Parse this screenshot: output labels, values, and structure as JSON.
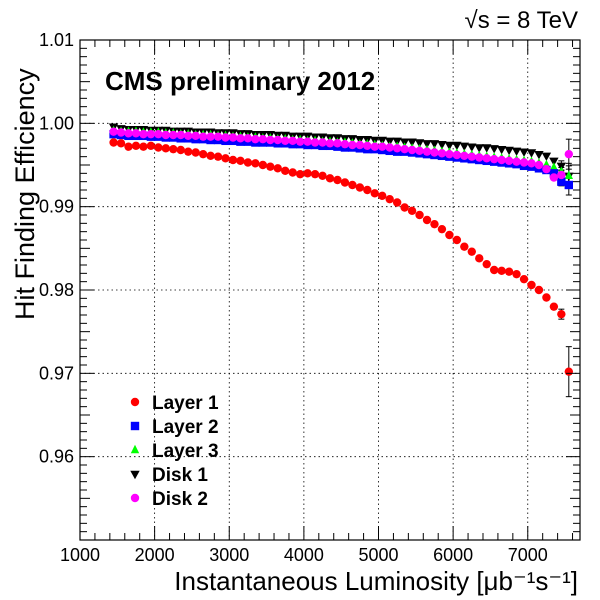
{
  "chart_data": {
    "type": "scatter",
    "energy_label": "√s = 8 TeV",
    "annotation": "CMS preliminary 2012",
    "xlabel": "Instantaneous Luminosity [μb⁻¹s⁻¹]",
    "ylabel": "Hit Finding Efficiency",
    "xlim": [
      1000,
      7700
    ],
    "ylim": [
      0.95,
      1.01
    ],
    "xticks": [
      {
        "value": 1000,
        "label": "1000"
      },
      {
        "value": 2000,
        "label": "2000"
      },
      {
        "value": 3000,
        "label": "3000"
      },
      {
        "value": 4000,
        "label": "4000"
      },
      {
        "value": 5000,
        "label": "5000"
      },
      {
        "value": 6000,
        "label": "6000"
      },
      {
        "value": 7000,
        "label": "7000"
      }
    ],
    "yticks": [
      {
        "value": 0.96,
        "label": "0.96"
      },
      {
        "value": 0.97,
        "label": "0.97"
      },
      {
        "value": 0.98,
        "label": "0.98"
      },
      {
        "value": 0.99,
        "label": "0.99"
      },
      {
        "value": 1.0,
        "label": "1.00"
      },
      {
        "value": 1.01,
        "label": "1.01"
      }
    ],
    "grid": true,
    "legend_position": "bottom-left",
    "series": [
      {
        "name": "Layer 1",
        "marker": "circle",
        "color": "#ff0000",
        "x": [
          1450,
          1550,
          1650,
          1750,
          1850,
          1950,
          2050,
          2150,
          2250,
          2350,
          2450,
          2550,
          2650,
          2750,
          2850,
          2950,
          3050,
          3150,
          3250,
          3350,
          3450,
          3550,
          3650,
          3750,
          3850,
          3950,
          4050,
          4150,
          4250,
          4350,
          4450,
          4550,
          4650,
          4750,
          4850,
          4950,
          5050,
          5150,
          5250,
          5350,
          5450,
          5550,
          5650,
          5750,
          5850,
          5950,
          6050,
          6150,
          6250,
          6350,
          6450,
          6550,
          6650,
          6750,
          6850,
          6950,
          7050,
          7150,
          7250,
          7350,
          7450,
          7550
        ],
        "y": [
          0.9977,
          0.9976,
          0.9972,
          0.9973,
          0.9972,
          0.9973,
          0.9971,
          0.997,
          0.9969,
          0.9968,
          0.9966,
          0.9965,
          0.9963,
          0.9961,
          0.996,
          0.9958,
          0.9956,
          0.9955,
          0.9953,
          0.9952,
          0.995,
          0.9948,
          0.9946,
          0.9943,
          0.9941,
          0.9939,
          0.994,
          0.9939,
          0.9937,
          0.9934,
          0.9932,
          0.9929,
          0.9926,
          0.9923,
          0.992,
          0.9916,
          0.9913,
          0.9909,
          0.9905,
          0.9899,
          0.9895,
          0.989,
          0.9884,
          0.9879,
          0.9873,
          0.9866,
          0.986,
          0.9852,
          0.9846,
          0.9838,
          0.9831,
          0.9824,
          0.9823,
          0.9822,
          0.9819,
          0.9813,
          0.9806,
          0.98,
          0.9791,
          0.978,
          0.9771,
          0.9702
        ],
        "yerr": [
          0.0002,
          0.0002,
          0.0002,
          0.0002,
          0.0002,
          0.0002,
          0.0002,
          0.0002,
          0.0002,
          0.0002,
          0.0002,
          0.0002,
          0.0002,
          0.0002,
          0.0002,
          0.0002,
          0.0002,
          0.0002,
          0.0002,
          0.0002,
          0.0002,
          0.0002,
          0.0002,
          0.0002,
          0.0002,
          0.0002,
          0.0002,
          0.0002,
          0.0002,
          0.0002,
          0.0002,
          0.0002,
          0.0002,
          0.0002,
          0.0002,
          0.0002,
          0.0002,
          0.0002,
          0.0002,
          0.0002,
          0.0002,
          0.0002,
          0.0002,
          0.0002,
          0.0002,
          0.0002,
          0.0002,
          0.0002,
          0.0002,
          0.0002,
          0.0002,
          0.0002,
          0.0002,
          0.0002,
          0.0002,
          0.0002,
          0.0002,
          0.0002,
          0.0003,
          0.0004,
          0.0006,
          0.003
        ]
      },
      {
        "name": "Layer 2",
        "marker": "square",
        "color": "#0000ff",
        "x": [
          1450,
          1550,
          1650,
          1750,
          1850,
          1950,
          2050,
          2150,
          2250,
          2350,
          2450,
          2550,
          2650,
          2750,
          2850,
          2950,
          3050,
          3150,
          3250,
          3350,
          3450,
          3550,
          3650,
          3750,
          3850,
          3950,
          4050,
          4150,
          4250,
          4350,
          4450,
          4550,
          4650,
          4750,
          4850,
          4950,
          5050,
          5150,
          5250,
          5350,
          5450,
          5550,
          5650,
          5750,
          5850,
          5950,
          6050,
          6150,
          6250,
          6350,
          6450,
          6550,
          6650,
          6750,
          6850,
          6950,
          7050,
          7150,
          7250,
          7350,
          7450,
          7550
        ],
        "y": [
          0.9987,
          0.9986,
          0.9985,
          0.9985,
          0.9985,
          0.9984,
          0.9984,
          0.9983,
          0.9983,
          0.9982,
          0.9982,
          0.9981,
          0.9981,
          0.998,
          0.998,
          0.9979,
          0.9979,
          0.9978,
          0.9978,
          0.9977,
          0.9977,
          0.9977,
          0.9976,
          0.9976,
          0.9975,
          0.9975,
          0.9974,
          0.9974,
          0.9973,
          0.9973,
          0.9972,
          0.9971,
          0.9971,
          0.997,
          0.9969,
          0.9969,
          0.9968,
          0.9967,
          0.9966,
          0.9966,
          0.9965,
          0.9964,
          0.9963,
          0.9962,
          0.9961,
          0.996,
          0.9959,
          0.9958,
          0.9957,
          0.9956,
          0.9955,
          0.9954,
          0.9953,
          0.9952,
          0.9951,
          0.9949,
          0.9948,
          0.9946,
          0.9944,
          0.994,
          0.993,
          0.9926
        ],
        "yerr": [
          0.0001,
          0.0001,
          0.0001,
          0.0001,
          0.0001,
          0.0001,
          0.0001,
          0.0001,
          0.0001,
          0.0001,
          0.0001,
          0.0001,
          0.0001,
          0.0001,
          0.0001,
          0.0001,
          0.0001,
          0.0001,
          0.0001,
          0.0001,
          0.0001,
          0.0001,
          0.0001,
          0.0001,
          0.0001,
          0.0001,
          0.0001,
          0.0001,
          0.0001,
          0.0001,
          0.0001,
          0.0001,
          0.0001,
          0.0001,
          0.0001,
          0.0001,
          0.0001,
          0.0001,
          0.0001,
          0.0001,
          0.0001,
          0.0001,
          0.0001,
          0.0001,
          0.0001,
          0.0001,
          0.0001,
          0.0001,
          0.0001,
          0.0001,
          0.0001,
          0.0001,
          0.0001,
          0.0001,
          0.0001,
          0.0001,
          0.0001,
          0.0001,
          0.0002,
          0.0003,
          0.0005,
          0.0012
        ]
      },
      {
        "name": "Layer 3",
        "marker": "triangle-up",
        "color": "#00ff00",
        "x": [
          1450,
          1550,
          1650,
          1750,
          1850,
          1950,
          2050,
          2150,
          2250,
          2350,
          2450,
          2550,
          2650,
          2750,
          2850,
          2950,
          3050,
          3150,
          3250,
          3350,
          3450,
          3550,
          3650,
          3750,
          3850,
          3950,
          4050,
          4150,
          4250,
          4350,
          4450,
          4550,
          4650,
          4750,
          4850,
          4950,
          5050,
          5150,
          5250,
          5350,
          5450,
          5550,
          5650,
          5750,
          5850,
          5950,
          6050,
          6150,
          6250,
          6350,
          6450,
          6550,
          6650,
          6750,
          6850,
          6950,
          7050,
          7150,
          7250,
          7350,
          7450,
          7550
        ],
        "y": [
          0.9991,
          0.999,
          0.999,
          0.999,
          0.9989,
          0.9989,
          0.9989,
          0.9988,
          0.9988,
          0.9987,
          0.9987,
          0.9986,
          0.9986,
          0.9986,
          0.9985,
          0.9985,
          0.9984,
          0.9984,
          0.9983,
          0.9983,
          0.9982,
          0.9982,
          0.9981,
          0.9981,
          0.998,
          0.998,
          0.9979,
          0.9979,
          0.9978,
          0.9978,
          0.9977,
          0.9977,
          0.9976,
          0.9975,
          0.9975,
          0.9974,
          0.9973,
          0.9972,
          0.9972,
          0.9971,
          0.997,
          0.9969,
          0.9968,
          0.9967,
          0.9966,
          0.9965,
          0.9964,
          0.9963,
          0.9962,
          0.9961,
          0.996,
          0.9959,
          0.9958,
          0.9957,
          0.9956,
          0.9955,
          0.9954,
          0.9952,
          0.995,
          0.9947,
          0.9942,
          0.9937
        ],
        "yerr": [
          0.0001,
          0.0001,
          0.0001,
          0.0001,
          0.0001,
          0.0001,
          0.0001,
          0.0001,
          0.0001,
          0.0001,
          0.0001,
          0.0001,
          0.0001,
          0.0001,
          0.0001,
          0.0001,
          0.0001,
          0.0001,
          0.0001,
          0.0001,
          0.0001,
          0.0001,
          0.0001,
          0.0001,
          0.0001,
          0.0001,
          0.0001,
          0.0001,
          0.0001,
          0.0001,
          0.0001,
          0.0001,
          0.0001,
          0.0001,
          0.0001,
          0.0001,
          0.0001,
          0.0001,
          0.0001,
          0.0001,
          0.0001,
          0.0001,
          0.0001,
          0.0001,
          0.0001,
          0.0001,
          0.0001,
          0.0001,
          0.0001,
          0.0001,
          0.0001,
          0.0001,
          0.0001,
          0.0001,
          0.0001,
          0.0001,
          0.0001,
          0.0001,
          0.0002,
          0.0003,
          0.0005,
          0.0012
        ]
      },
      {
        "name": "Disk 1",
        "marker": "triangle-down",
        "color": "#000000",
        "x": [
          1450,
          1550,
          1650,
          1750,
          1850,
          1950,
          2050,
          2150,
          2250,
          2350,
          2450,
          2550,
          2650,
          2750,
          2850,
          2950,
          3050,
          3150,
          3250,
          3350,
          3450,
          3550,
          3650,
          3750,
          3850,
          3950,
          4050,
          4150,
          4250,
          4350,
          4450,
          4550,
          4650,
          4750,
          4850,
          4950,
          5050,
          5150,
          5250,
          5350,
          5450,
          5550,
          5650,
          5750,
          5850,
          5950,
          6050,
          6150,
          6250,
          6350,
          6450,
          6550,
          6650,
          6750,
          6850,
          6950,
          7050,
          7150,
          7250,
          7350,
          7450,
          7550
        ],
        "y": [
          0.9996,
          0.9994,
          0.9993,
          0.9993,
          0.9993,
          0.9992,
          0.9992,
          0.9992,
          0.9991,
          0.9991,
          0.9991,
          0.999,
          0.999,
          0.999,
          0.9989,
          0.9989,
          0.9989,
          0.9988,
          0.9988,
          0.9987,
          0.9987,
          0.9987,
          0.9986,
          0.9986,
          0.9985,
          0.9985,
          0.9985,
          0.9984,
          0.9984,
          0.9983,
          0.9983,
          0.9982,
          0.9982,
          0.9981,
          0.9981,
          0.998,
          0.998,
          0.9979,
          0.9979,
          0.9978,
          0.9978,
          0.9977,
          0.9976,
          0.9976,
          0.9975,
          0.9974,
          0.9974,
          0.9973,
          0.9972,
          0.9971,
          0.9971,
          0.997,
          0.9969,
          0.9968,
          0.9967,
          0.9966,
          0.9965,
          0.9963,
          0.9961,
          0.9955,
          0.9949,
          0.9937
        ],
        "yerr": [
          0.0001,
          0.0001,
          0.0001,
          0.0001,
          0.0001,
          0.0001,
          0.0001,
          0.0001,
          0.0001,
          0.0001,
          0.0001,
          0.0001,
          0.0001,
          0.0001,
          0.0001,
          0.0001,
          0.0001,
          0.0001,
          0.0001,
          0.0001,
          0.0001,
          0.0001,
          0.0001,
          0.0001,
          0.0001,
          0.0001,
          0.0001,
          0.0001,
          0.0001,
          0.0001,
          0.0001,
          0.0001,
          0.0001,
          0.0001,
          0.0001,
          0.0001,
          0.0001,
          0.0001,
          0.0001,
          0.0001,
          0.0001,
          0.0001,
          0.0001,
          0.0001,
          0.0001,
          0.0001,
          0.0001,
          0.0001,
          0.0001,
          0.0001,
          0.0001,
          0.0001,
          0.0001,
          0.0001,
          0.0001,
          0.0001,
          0.0001,
          0.0002,
          0.0002,
          0.0004,
          0.0006,
          0.0015
        ]
      },
      {
        "name": "Disk 2",
        "marker": "circle",
        "color": "#ff00ff",
        "x": [
          1450,
          1550,
          1650,
          1750,
          1850,
          1950,
          2050,
          2150,
          2250,
          2350,
          2450,
          2550,
          2650,
          2750,
          2850,
          2950,
          3050,
          3150,
          3250,
          3350,
          3450,
          3550,
          3650,
          3750,
          3850,
          3950,
          4050,
          4150,
          4250,
          4350,
          4450,
          4550,
          4650,
          4750,
          4850,
          4950,
          5050,
          5150,
          5250,
          5350,
          5450,
          5550,
          5650,
          5750,
          5850,
          5950,
          6050,
          6150,
          6250,
          6350,
          6450,
          6550,
          6650,
          6750,
          6850,
          6950,
          7050,
          7150,
          7250,
          7350,
          7450,
          7550
        ],
        "y": [
          0.999,
          0.9989,
          0.9988,
          0.9988,
          0.9987,
          0.9987,
          0.9987,
          0.9986,
          0.9986,
          0.9986,
          0.9985,
          0.9985,
          0.9984,
          0.9984,
          0.9984,
          0.9983,
          0.9983,
          0.9982,
          0.9982,
          0.9981,
          0.9981,
          0.998,
          0.998,
          0.9979,
          0.9979,
          0.9978,
          0.9978,
          0.9977,
          0.9977,
          0.9976,
          0.9976,
          0.9975,
          0.9974,
          0.9974,
          0.9973,
          0.9972,
          0.9972,
          0.9971,
          0.997,
          0.9969,
          0.9968,
          0.9967,
          0.9966,
          0.9965,
          0.9964,
          0.9963,
          0.9962,
          0.9961,
          0.996,
          0.9959,
          0.9958,
          0.9957,
          0.9956,
          0.9955,
          0.9954,
          0.9953,
          0.9952,
          0.995,
          0.9945,
          0.9935,
          0.9938,
          0.9963
        ],
        "yerr": [
          0.0001,
          0.0001,
          0.0001,
          0.0001,
          0.0001,
          0.0001,
          0.0001,
          0.0001,
          0.0001,
          0.0001,
          0.0001,
          0.0001,
          0.0001,
          0.0001,
          0.0001,
          0.0001,
          0.0001,
          0.0001,
          0.0001,
          0.0001,
          0.0001,
          0.0001,
          0.0001,
          0.0001,
          0.0001,
          0.0001,
          0.0001,
          0.0001,
          0.0001,
          0.0001,
          0.0001,
          0.0001,
          0.0001,
          0.0001,
          0.0001,
          0.0001,
          0.0001,
          0.0001,
          0.0001,
          0.0001,
          0.0001,
          0.0001,
          0.0001,
          0.0001,
          0.0001,
          0.0001,
          0.0001,
          0.0001,
          0.0001,
          0.0001,
          0.0001,
          0.0001,
          0.0001,
          0.0001,
          0.0001,
          0.0001,
          0.0001,
          0.0002,
          0.0002,
          0.0004,
          0.0006,
          0.0018
        ]
      }
    ]
  }
}
